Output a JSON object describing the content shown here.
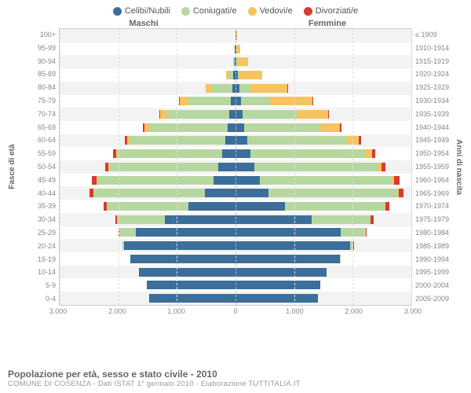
{
  "legend": [
    {
      "label": "Celibi/Nubili",
      "color": "#3b6e9a"
    },
    {
      "label": "Coniugati/e",
      "color": "#b7d7a0"
    },
    {
      "label": "Vedovi/e",
      "color": "#f7c260"
    },
    {
      "label": "Divorziati/e",
      "color": "#d73a2f"
    }
  ],
  "header_left": "Maschi",
  "header_right": "Femmine",
  "ylabel_left": "Fasce di età",
  "ylabel_right": "Anni di nascita",
  "age_labels": [
    "100+",
    "95-99",
    "90-94",
    "85-89",
    "80-84",
    "75-79",
    "70-74",
    "65-69",
    "60-64",
    "55-59",
    "50-54",
    "45-49",
    "40-44",
    "35-39",
    "30-34",
    "25-29",
    "20-24",
    "15-19",
    "10-14",
    "5-9",
    "0-4"
  ],
  "birth_labels": [
    "≤ 1909",
    "1910-1914",
    "1915-1919",
    "1920-1924",
    "1925-1929",
    "1930-1934",
    "1935-1939",
    "1940-1944",
    "1945-1949",
    "1950-1954",
    "1955-1959",
    "1960-1964",
    "1965-1969",
    "1970-1974",
    "1975-1979",
    "1980-1984",
    "1985-1989",
    "1990-1994",
    "1995-1999",
    "2000-2004",
    "2005-2009"
  ],
  "x_ticks": [
    "3.000",
    "2.000",
    "1.000",
    "0",
    "1.000",
    "2.000",
    "3.000"
  ],
  "x_max": 3000,
  "pyramid": [
    {
      "m": [
        5,
        0,
        0,
        0
      ],
      "f": [
        10,
        0,
        15,
        0
      ]
    },
    {
      "m": [
        10,
        0,
        5,
        0
      ],
      "f": [
        10,
        5,
        70,
        0
      ]
    },
    {
      "m": [
        20,
        10,
        15,
        0
      ],
      "f": [
        20,
        10,
        180,
        0
      ]
    },
    {
      "m": [
        40,
        80,
        40,
        0
      ],
      "f": [
        40,
        30,
        380,
        0
      ]
    },
    {
      "m": [
        60,
        340,
        110,
        5
      ],
      "f": [
        70,
        180,
        640,
        5
      ]
    },
    {
      "m": [
        80,
        730,
        140,
        10
      ],
      "f": [
        90,
        500,
        720,
        10
      ]
    },
    {
      "m": [
        110,
        1070,
        110,
        15
      ],
      "f": [
        120,
        920,
        540,
        15
      ]
    },
    {
      "m": [
        130,
        1350,
        70,
        25
      ],
      "f": [
        150,
        1300,
        330,
        25
      ]
    },
    {
      "m": [
        180,
        1630,
        40,
        40
      ],
      "f": [
        200,
        1700,
        200,
        45
      ]
    },
    {
      "m": [
        230,
        1780,
        25,
        55
      ],
      "f": [
        260,
        1950,
        120,
        60
      ]
    },
    {
      "m": [
        290,
        1860,
        15,
        65
      ],
      "f": [
        320,
        2100,
        70,
        70
      ]
    },
    {
      "m": [
        380,
        1980,
        10,
        75
      ],
      "f": [
        420,
        2250,
        40,
        90
      ]
    },
    {
      "m": [
        520,
        1900,
        5,
        70
      ],
      "f": [
        560,
        2200,
        25,
        85
      ]
    },
    {
      "m": [
        800,
        1400,
        0,
        55
      ],
      "f": [
        850,
        1700,
        15,
        65
      ]
    },
    {
      "m": [
        1200,
        820,
        0,
        35
      ],
      "f": [
        1300,
        1000,
        8,
        45
      ]
    },
    {
      "m": [
        1700,
        280,
        0,
        15
      ],
      "f": [
        1800,
        420,
        3,
        20
      ]
    },
    {
      "m": [
        1900,
        30,
        0,
        2
      ],
      "f": [
        1950,
        60,
        0,
        5
      ]
    },
    {
      "m": [
        1800,
        0,
        0,
        0
      ],
      "f": [
        1780,
        5,
        0,
        0
      ]
    },
    {
      "m": [
        1650,
        0,
        0,
        0
      ],
      "f": [
        1560,
        0,
        0,
        0
      ]
    },
    {
      "m": [
        1520,
        0,
        0,
        0
      ],
      "f": [
        1450,
        0,
        0,
        0
      ]
    },
    {
      "m": [
        1480,
        0,
        0,
        0
      ],
      "f": [
        1400,
        0,
        0,
        0
      ]
    }
  ],
  "title": "Popolazione per età, sesso e stato civile - 2010",
  "subtitle": "COMUNE DI COSENZA - Dati ISTAT 1° gennaio 2010 - Elaborazione TUTTITALIA.IT"
}
